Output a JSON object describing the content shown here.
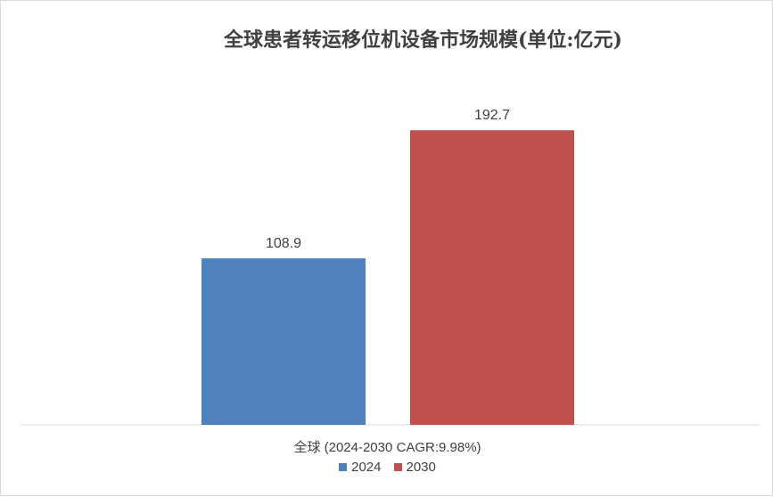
{
  "chart_data": {
    "type": "bar",
    "title": "全球患者转运移位机设备市场规模(单位:亿元)",
    "categories": [
      "全球 (2024-2030 CAGR:9.98%)"
    ],
    "series": [
      {
        "name": "2024",
        "values": [
          108.9
        ],
        "label": "108.9",
        "color": "#4f81bd"
      },
      {
        "name": "2030",
        "values": [
          192.7
        ],
        "label": "192.7",
        "color": "#c0504d"
      }
    ],
    "ylim": [
      0,
      240
    ],
    "grid": false,
    "legend_position": "bottom"
  }
}
